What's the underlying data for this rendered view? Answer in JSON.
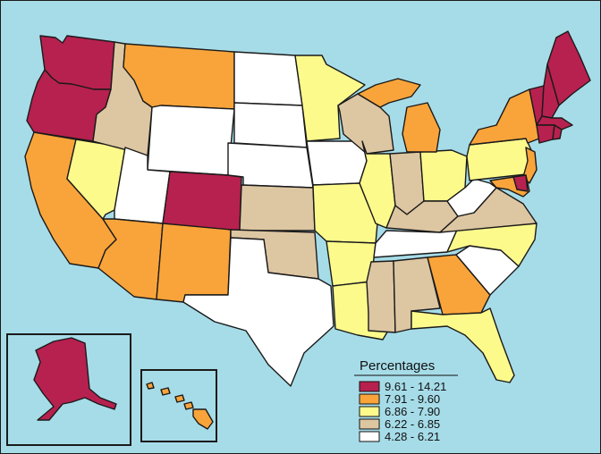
{
  "colors": {
    "ocean": "#a6dce8",
    "class_1": "#b7214f",
    "class_2": "#f9a43a",
    "class_3": "#fdfa8c",
    "class_4": "#ddc6a2",
    "class_5": "#ffffff"
  },
  "legend": {
    "title": "Percentages",
    "items": [
      {
        "label": "9.61 - 14.21",
        "color": "#b7214f"
      },
      {
        "label": "7.91 - 9.60",
        "color": "#f9a43a"
      },
      {
        "label": "6.86 - 7.90",
        "color": "#fdfa8c"
      },
      {
        "label": "6.22 - 6.85",
        "color": "#ddc6a2"
      },
      {
        "label": "4.28 - 6.21",
        "color": "#ffffff"
      }
    ]
  },
  "states": {
    "WA": 1,
    "OR": 1,
    "CO": 1,
    "ME": 1,
    "NH": 1,
    "VT": 1,
    "MA": 1,
    "RI": 1,
    "CT": 1,
    "DE": 1,
    "AK": 1,
    "CA": 2,
    "AZ": 2,
    "NM": 2,
    "MT": 2,
    "MI": 2,
    "GA": 2,
    "NY": 2,
    "NJ": 2,
    "MD": 2,
    "HI": 2,
    "NV": 3,
    "MN": 3,
    "MO": 3,
    "IL": 3,
    "AR": 3,
    "LA": 3,
    "OH": 3,
    "PA": 3,
    "NC": 3,
    "FL": 3,
    "ID": 4,
    "KS": 4,
    "OK": 4,
    "WI": 4,
    "IN": 4,
    "KY": 4,
    "MS": 4,
    "AL": 4,
    "VA": 4,
    "UT": 5,
    "WY": 5,
    "ND": 5,
    "SD": 5,
    "NE": 5,
    "TX": 5,
    "IA": 5,
    "TN": 5,
    "WV": 5,
    "SC": 5
  }
}
